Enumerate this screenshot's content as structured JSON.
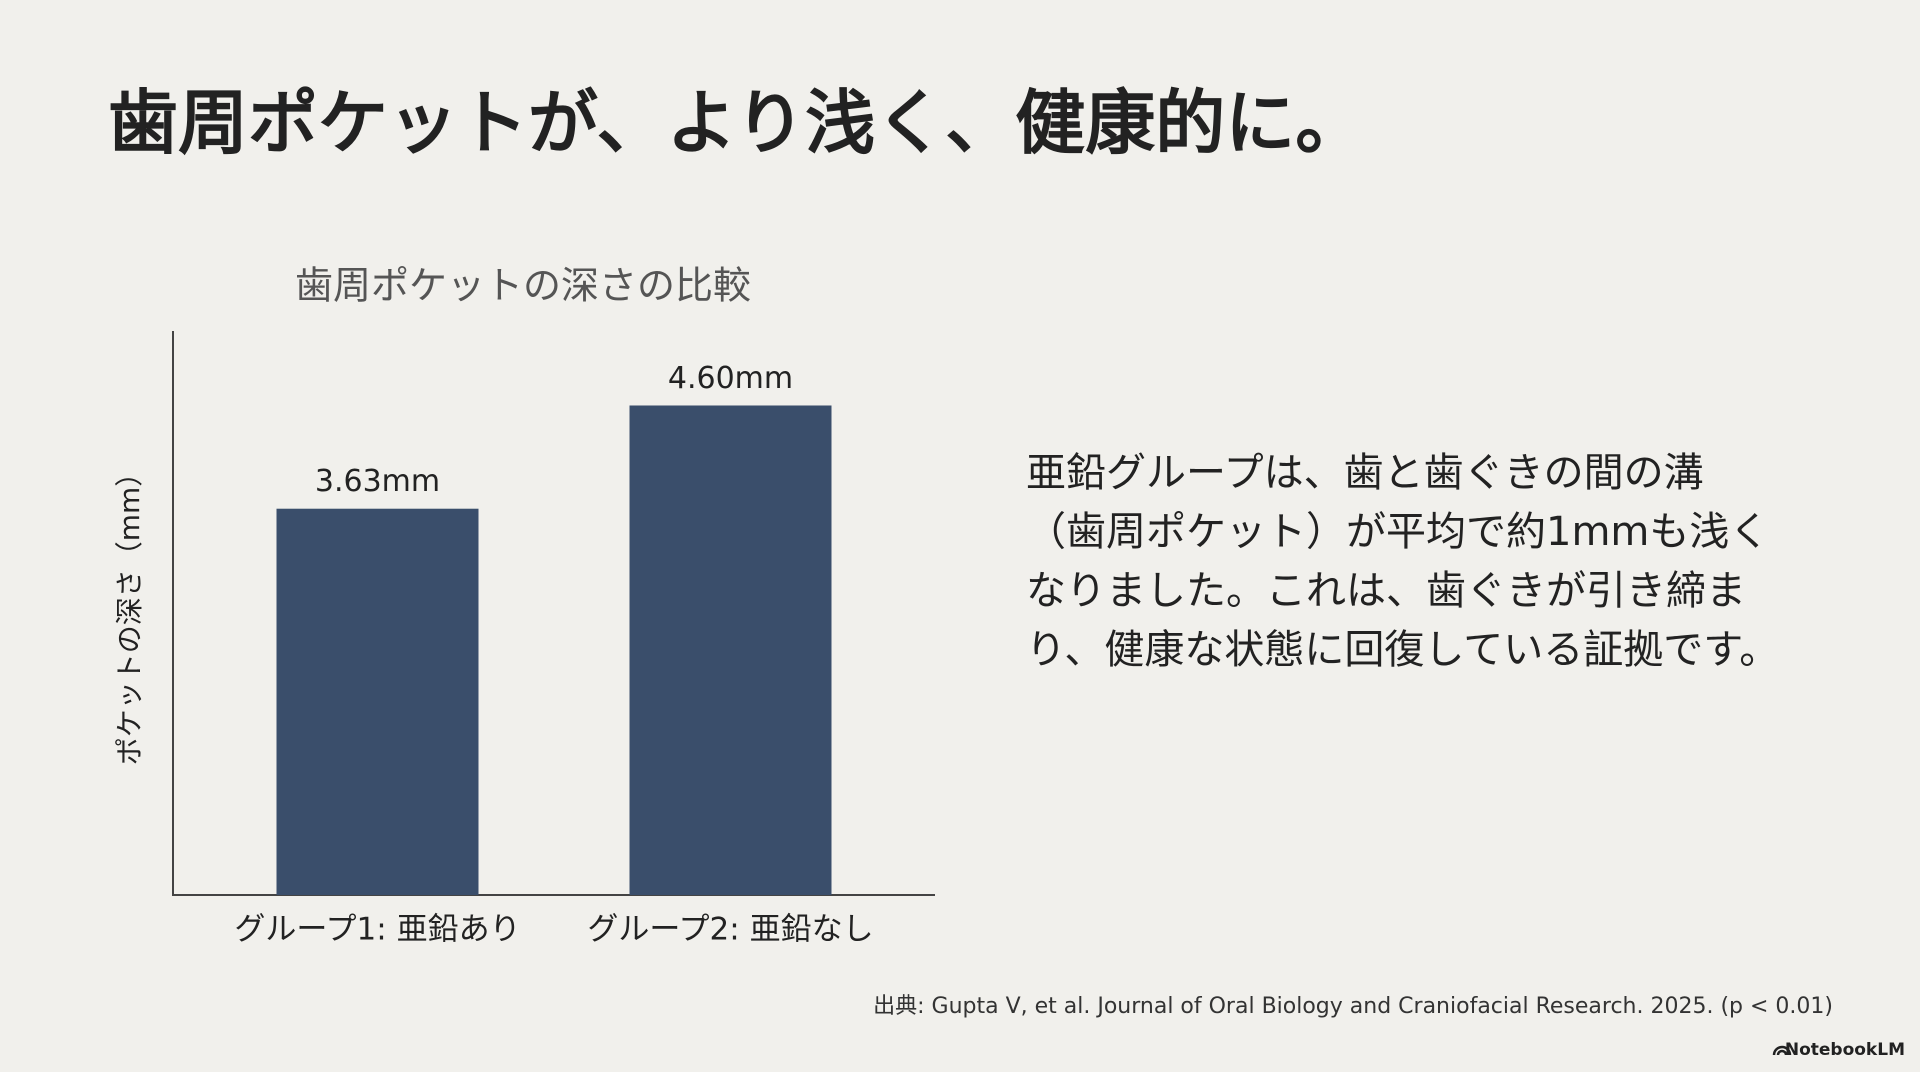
{
  "heading": "歯周ポケットが、より浅く、健康的に。",
  "body_lines": [
    "亜鉛グループは、歯と歯ぐきの間の溝",
    "（歯周ポケット）が平均で約1mmも浅く",
    "なりました。これは、歯ぐきが引き締ま",
    "り、健康な状態に回復している証拠です。"
  ],
  "source": "出典: Gupta V, et al. Journal of Oral Biology and Craniofacial Research. 2025. (p < 0.01)",
  "brand": "NotebookLM",
  "chart_data": {
    "type": "bar",
    "title": "歯周ポケットの深さの比較",
    "y_label": "ポケットの深さ（mm）",
    "categories": [
      "グループ1: 亜鉛あり",
      "グループ2: 亜鉛なし"
    ],
    "values": [
      3.63,
      4.6
    ],
    "value_labels": [
      "3.63mm",
      "4.60mm"
    ],
    "color": "#3a4e6b",
    "ylim": [
      0,
      5.3
    ]
  }
}
